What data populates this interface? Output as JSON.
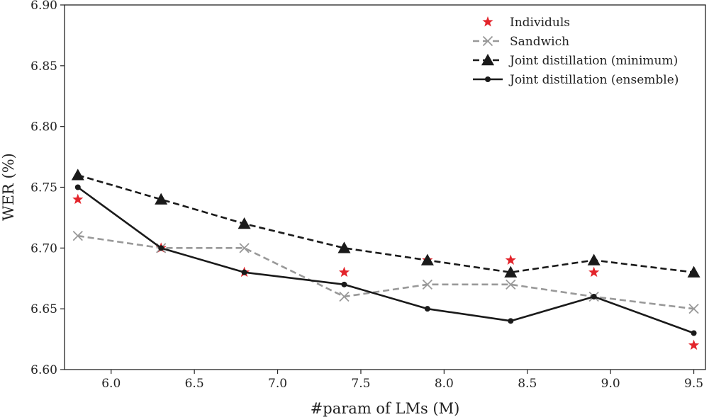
{
  "chart_data": {
    "type": "line",
    "xlabel": "#param of LMs (M)",
    "ylabel": "WER (%)",
    "xlim": [
      5.72,
      9.57
    ],
    "ylim": [
      6.6,
      6.9
    ],
    "xticks": [
      "6.0",
      "6.5",
      "7.0",
      "7.5",
      "8.0",
      "8.5",
      "9.0",
      "9.5"
    ],
    "yticks": [
      "6.60",
      "6.65",
      "6.70",
      "6.75",
      "6.80",
      "6.85",
      "6.90"
    ],
    "legend_position": "top-right",
    "grid": false,
    "series": [
      {
        "name": "Individuls",
        "style": "markers-only",
        "marker": "star",
        "color": "#e3242b",
        "x": [
          5.8,
          6.3,
          6.8,
          7.4,
          7.9,
          8.4,
          8.9,
          9.5
        ],
        "y": [
          6.74,
          6.7,
          6.68,
          6.68,
          6.69,
          6.69,
          6.68,
          6.62
        ]
      },
      {
        "name": "Sandwich",
        "style": "dashed",
        "marker": "x",
        "color": "#999999",
        "x": [
          5.8,
          6.3,
          6.8,
          7.4,
          7.9,
          8.4,
          8.9,
          9.5
        ],
        "y": [
          6.71,
          6.7,
          6.7,
          6.66,
          6.67,
          6.67,
          6.66,
          6.65
        ]
      },
      {
        "name": "Joint distillation (minimum)",
        "style": "dashed",
        "marker": "triangle",
        "color": "#1a1a1a",
        "x": [
          5.8,
          6.3,
          6.8,
          7.4,
          7.9,
          8.4,
          8.9,
          9.5
        ],
        "y": [
          6.76,
          6.74,
          6.72,
          6.7,
          6.69,
          6.68,
          6.69,
          6.68
        ]
      },
      {
        "name": "Joint distillation (ensemble)",
        "style": "solid",
        "marker": "dot",
        "color": "#1a1a1a",
        "x": [
          5.8,
          6.3,
          6.8,
          7.4,
          7.9,
          8.4,
          8.9,
          9.5
        ],
        "y": [
          6.75,
          6.7,
          6.68,
          6.67,
          6.65,
          6.64,
          6.66,
          6.63
        ]
      }
    ]
  }
}
